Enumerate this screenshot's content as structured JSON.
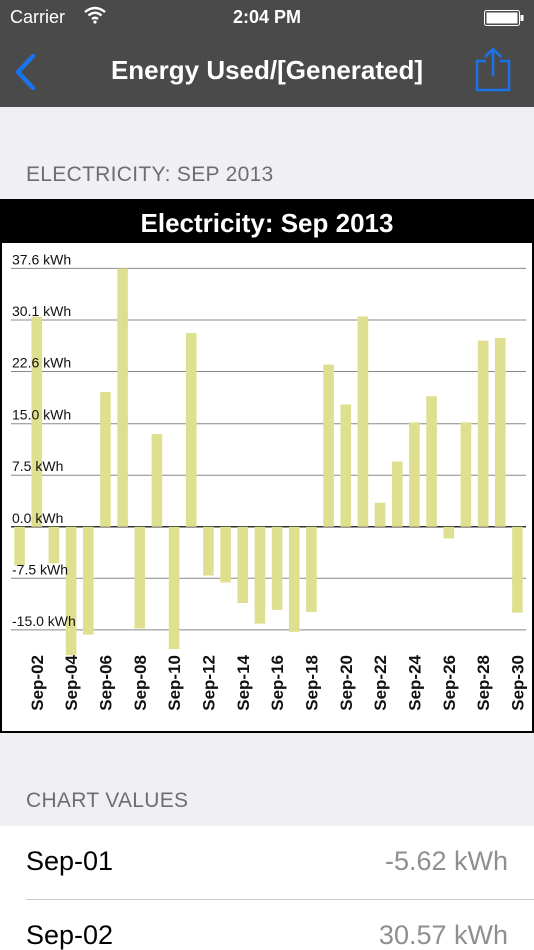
{
  "status_bar": {
    "carrier": "Carrier",
    "time": "2:04 PM"
  },
  "nav": {
    "title": "Energy Used/[Generated]",
    "back_icon": "chevron-left-icon",
    "share_icon": "share-icon",
    "accent_color": "#1a73e8"
  },
  "chart_section": {
    "header": "ELECTRICITY: SEP 2013"
  },
  "chart_data": {
    "type": "bar",
    "title": "Electricity: Sep 2013",
    "bar_color": "#dfe08f",
    "ylim": [
      -17.5,
      41.3
    ],
    "yticks": [
      37.6,
      30.1,
      22.6,
      15.0,
      7.5,
      0.0,
      -7.5,
      -15.0
    ],
    "ytick_labels": [
      "37.6 kWh",
      "30.1 kWh",
      "22.6 kWh",
      "15.0 kWh",
      "7.5 kWh",
      "0.0 kWh",
      "-7.5 kWh",
      "-15.0 kWh"
    ],
    "categories": [
      "Sep-01",
      "Sep-02",
      "Sep-03",
      "Sep-04",
      "Sep-05",
      "Sep-06",
      "Sep-07",
      "Sep-08",
      "Sep-09",
      "Sep-10",
      "Sep-11",
      "Sep-12",
      "Sep-13",
      "Sep-14",
      "Sep-15",
      "Sep-16",
      "Sep-17",
      "Sep-18",
      "Sep-19",
      "Sep-20",
      "Sep-21",
      "Sep-22",
      "Sep-23",
      "Sep-24",
      "Sep-25",
      "Sep-26",
      "Sep-27",
      "Sep-28",
      "Sep-29",
      "Sep-30"
    ],
    "xtick_labels": [
      "Sep-02",
      "Sep-04",
      "Sep-06",
      "Sep-08",
      "Sep-10",
      "Sep-12",
      "Sep-14",
      "Sep-16",
      "Sep-18",
      "Sep-20",
      "Sep-22",
      "Sep-24",
      "Sep-26",
      "Sep-28",
      "Sep-30"
    ],
    "values": [
      -5.62,
      30.57,
      -5.3,
      -18.7,
      -15.7,
      19.6,
      37.6,
      -14.8,
      13.5,
      -17.8,
      28.2,
      -7.1,
      -8.1,
      -11.1,
      -14.1,
      -12.1,
      -15.3,
      -12.4,
      23.6,
      17.8,
      30.6,
      3.5,
      9.5,
      15.2,
      19.0,
      -1.7,
      15.2,
      27.1,
      27.5,
      -12.5
    ]
  },
  "values_section": {
    "header": "CHART VALUES",
    "rows": [
      {
        "date": "Sep-01",
        "value": "-5.62 kWh"
      },
      {
        "date": "Sep-02",
        "value": "30.57 kWh"
      }
    ]
  }
}
